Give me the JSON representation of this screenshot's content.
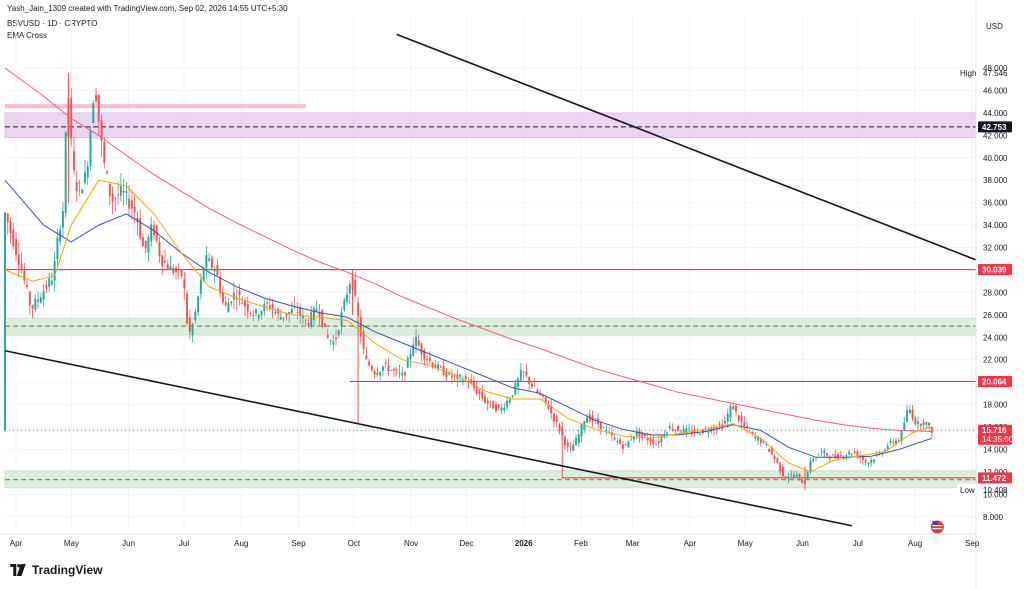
{
  "header": {
    "credit": "Yash_Jain_1309 created with TradingView.com, Sep 02, 2026 14:55 UTC+5:30",
    "symbol": "BSVUSD · 1D · CRYPTO",
    "indicator": "EMA Cross"
  },
  "currency": "USD",
  "brand": {
    "name": "TradingView",
    "logo_icon": "tradingview-logo-icon"
  },
  "chart_data": {
    "type": "line",
    "price_axis": {
      "ticks": [
        "8.000",
        "10.000",
        "12.000",
        "14.000",
        "16.000",
        "18.000",
        "20.000",
        "22.000",
        "24.000",
        "26.000",
        "28.000",
        "30.000",
        "32.000",
        "34.000",
        "36.000",
        "38.000",
        "40.000",
        "42.000",
        "44.000",
        "46.000",
        "48.000"
      ],
      "range": [
        7.0,
        50.5
      ]
    },
    "time_axis": {
      "labels": [
        "Apr",
        "May",
        "Jun",
        "Jul",
        "Aug",
        "Sep",
        "Oct",
        "Nov",
        "Dec",
        "2026",
        "Feb",
        "Mar",
        "Apr",
        "May",
        "Jun",
        "Jul",
        "Aug",
        "Sep"
      ],
      "range_days": [
        -4,
        348
      ]
    },
    "price_labels": [
      {
        "name": "high",
        "prefix": "High",
        "value": "47.546",
        "kind": "plain"
      },
      {
        "name": "level-42753",
        "value": "42.753",
        "kind": "dark"
      },
      {
        "name": "level-30039",
        "value": "30.039",
        "kind": "red"
      },
      {
        "name": "level-20064",
        "value": "20.064",
        "kind": "red"
      },
      {
        "name": "last-price",
        "value": "15.716",
        "sub": "14:35:00",
        "kind": "red"
      },
      {
        "name": "level-11472",
        "value": "11.472",
        "kind": "red"
      },
      {
        "name": "low",
        "prefix": "Low",
        "value": "10.408",
        "kind": "plain"
      }
    ],
    "zones": [
      {
        "name": "resistance-zone",
        "from": 41.8,
        "to": 44.0,
        "color": "#e1bee7"
      },
      {
        "name": "mid-support-zone",
        "from": 24.2,
        "to": 25.7,
        "color": "#c8e6c9"
      },
      {
        "name": "bottom-support-zone",
        "from": 10.6,
        "to": 12.1,
        "color": "#c8e6c9"
      }
    ],
    "horizontal_lines": [
      {
        "name": "level-42753",
        "value": 42.753,
        "style": "dashed",
        "color": "#131722"
      },
      {
        "name": "level-30039",
        "value": 30.039,
        "style": "solid",
        "color": "#f23645"
      },
      {
        "name": "level-20064",
        "value": 20.064,
        "style": "solid",
        "color": "#f23645"
      },
      {
        "name": "level-11472",
        "value": 11.472,
        "style": "solid",
        "color": "#f23645"
      },
      {
        "name": "mid-zone-dash",
        "value": 25.0,
        "style": "dashed",
        "color": "#5d7a60"
      },
      {
        "name": "bottom-zone-dash",
        "value": 11.3,
        "style": "dashed",
        "color": "#5d7a60"
      },
      {
        "name": "last-price-line",
        "value": 15.716,
        "style": "dotted",
        "color": "#26a69a"
      }
    ],
    "pink_highlight": {
      "value": 44.6,
      "from_day": -4,
      "to_day": 105
    },
    "trendlines": [
      {
        "name": "upper-trendline",
        "from": {
          "day": 138,
          "price": 51.0
        },
        "to": {
          "day": 348,
          "price": 30.9
        }
      },
      {
        "name": "lower-trendline",
        "from": {
          "day": -4,
          "price": 22.8
        },
        "to": {
          "day": 303,
          "price": 7.2
        }
      }
    ],
    "ema_fast_color": "#f7a600",
    "ema_mid_color": "#3f51b5",
    "ema_slow_color": "#ef5f78",
    "up_color": "#26a69a",
    "down_color": "#ef5350",
    "price_path": [
      [
        -4,
        35.5
      ],
      [
        2,
        30.5
      ],
      [
        6,
        26.5
      ],
      [
        10,
        28.0
      ],
      [
        14,
        29.5
      ],
      [
        16,
        33.5
      ],
      [
        18,
        36.0
      ],
      [
        19,
        47.5
      ],
      [
        21,
        39.0
      ],
      [
        23,
        37.0
      ],
      [
        26,
        38.5
      ],
      [
        29,
        46.8
      ],
      [
        32,
        40.0
      ],
      [
        35,
        36.2
      ],
      [
        39,
        37.0
      ],
      [
        44,
        35.0
      ],
      [
        47,
        31.5
      ],
      [
        50,
        34.0
      ],
      [
        53,
        31.0
      ],
      [
        57,
        30.0
      ],
      [
        61,
        29.5
      ],
      [
        63,
        24.0
      ],
      [
        65,
        25.5
      ],
      [
        69,
        31.0
      ],
      [
        73,
        30.0
      ],
      [
        76,
        26.5
      ],
      [
        80,
        28.0
      ],
      [
        83,
        27.0
      ],
      [
        87,
        26.0
      ],
      [
        92,
        27.0
      ],
      [
        96,
        25.8
      ],
      [
        102,
        26.5
      ],
      [
        106,
        25.2
      ],
      [
        110,
        26.8
      ],
      [
        113,
        24.0
      ],
      [
        116,
        23.5
      ],
      [
        120,
        27.5
      ],
      [
        122,
        29.5
      ],
      [
        124,
        26.5
      ],
      [
        127,
        22.0
      ],
      [
        131,
        20.8
      ],
      [
        134,
        21.5
      ],
      [
        137,
        21.0
      ],
      [
        141,
        20.5
      ],
      [
        145,
        24.0
      ],
      [
        148,
        22.5
      ],
      [
        152,
        21.5
      ],
      [
        158,
        20.5
      ],
      [
        164,
        20.2
      ],
      [
        171,
        18.2
      ],
      [
        176,
        17.5
      ],
      [
        180,
        18.8
      ],
      [
        184,
        21.0
      ],
      [
        188,
        19.5
      ],
      [
        193,
        18.0
      ],
      [
        198,
        15.5
      ],
      [
        201,
        13.8
      ],
      [
        204,
        15.0
      ],
      [
        207,
        17.0
      ],
      [
        212,
        16.2
      ],
      [
        217,
        15.0
      ],
      [
        221,
        14.2
      ],
      [
        225,
        15.5
      ],
      [
        229,
        15.0
      ],
      [
        233,
        14.5
      ],
      [
        237,
        16.0
      ],
      [
        242,
        15.7
      ],
      [
        247,
        15.5
      ],
      [
        252,
        15.8
      ],
      [
        257,
        16.2
      ],
      [
        260,
        18.0
      ],
      [
        263,
        16.5
      ],
      [
        267,
        15.3
      ],
      [
        272,
        14.5
      ],
      [
        276,
        13.0
      ],
      [
        279,
        11.5
      ],
      [
        283,
        11.8
      ],
      [
        286,
        11.0
      ],
      [
        289,
        13.2
      ],
      [
        293,
        13.8
      ],
      [
        296,
        13.3
      ],
      [
        300,
        13.5
      ],
      [
        304,
        13.8
      ],
      [
        309,
        12.8
      ],
      [
        313,
        13.5
      ],
      [
        317,
        14.5
      ],
      [
        321,
        15.0
      ],
      [
        324,
        17.8
      ],
      [
        327,
        16.2
      ],
      [
        330,
        16.5
      ],
      [
        332,
        15.7
      ]
    ],
    "wick_spikes": [
      {
        "day": 19,
        "high": 47.546,
        "low": 36.0
      },
      {
        "day": 122,
        "high": 30.0,
        "low": 26.0
      },
      {
        "day": 124,
        "high": 27.0,
        "low": 16.2
      },
      {
        "day": 198,
        "high": 16.5,
        "low": 11.4
      },
      {
        "day": 286,
        "high": 12.5,
        "low": 10.408
      }
    ],
    "ema_fast": [
      [
        -4,
        30.0
      ],
      [
        6,
        29.0
      ],
      [
        14,
        29.5
      ],
      [
        20,
        34.0
      ],
      [
        30,
        38.0
      ],
      [
        40,
        37.5
      ],
      [
        50,
        35.0
      ],
      [
        60,
        31.5
      ],
      [
        70,
        28.5
      ],
      [
        80,
        27.5
      ],
      [
        90,
        26.7
      ],
      [
        100,
        26.0
      ],
      [
        110,
        25.8
      ],
      [
        120,
        25.5
      ],
      [
        130,
        23.5
      ],
      [
        140,
        22.0
      ],
      [
        150,
        21.5
      ],
      [
        160,
        20.5
      ],
      [
        170,
        19.2
      ],
      [
        180,
        18.5
      ],
      [
        190,
        18.5
      ],
      [
        200,
        16.8
      ],
      [
        210,
        15.8
      ],
      [
        220,
        15.2
      ],
      [
        230,
        15.0
      ],
      [
        240,
        15.4
      ],
      [
        250,
        15.8
      ],
      [
        260,
        16.3
      ],
      [
        270,
        15.0
      ],
      [
        280,
        12.8
      ],
      [
        288,
        12.0
      ],
      [
        296,
        13.0
      ],
      [
        305,
        13.4
      ],
      [
        315,
        13.8
      ],
      [
        325,
        15.5
      ],
      [
        332,
        16.0
      ]
    ],
    "ema_mid": [
      [
        -4,
        38.0
      ],
      [
        10,
        34.0
      ],
      [
        20,
        32.5
      ],
      [
        30,
        34.0
      ],
      [
        40,
        35.0
      ],
      [
        50,
        33.5
      ],
      [
        60,
        31.5
      ],
      [
        70,
        29.8
      ],
      [
        80,
        28.5
      ],
      [
        90,
        27.5
      ],
      [
        100,
        26.8
      ],
      [
        110,
        26.2
      ],
      [
        120,
        25.8
      ],
      [
        130,
        24.5
      ],
      [
        140,
        23.5
      ],
      [
        150,
        22.5
      ],
      [
        160,
        21.5
      ],
      [
        170,
        20.5
      ],
      [
        180,
        19.5
      ],
      [
        190,
        19.0
      ],
      [
        200,
        17.8
      ],
      [
        210,
        16.6
      ],
      [
        220,
        15.8
      ],
      [
        230,
        15.3
      ],
      [
        240,
        15.3
      ],
      [
        250,
        15.6
      ],
      [
        260,
        16.2
      ],
      [
        270,
        15.7
      ],
      [
        280,
        14.2
      ],
      [
        290,
        13.3
      ],
      [
        300,
        13.3
      ],
      [
        310,
        13.4
      ],
      [
        320,
        14.0
      ],
      [
        332,
        15.0
      ]
    ],
    "ema_slow": [
      [
        -4,
        48.0
      ],
      [
        10,
        45.5
      ],
      [
        20,
        43.5
      ],
      [
        30,
        42.0
      ],
      [
        40,
        40.2
      ],
      [
        50,
        38.5
      ],
      [
        60,
        37.0
      ],
      [
        70,
        35.5
      ],
      [
        80,
        34.2
      ],
      [
        90,
        33.0
      ],
      [
        100,
        31.8
      ],
      [
        110,
        30.7
      ],
      [
        120,
        29.8
      ],
      [
        130,
        28.8
      ],
      [
        140,
        27.6
      ],
      [
        150,
        26.6
      ],
      [
        160,
        25.6
      ],
      [
        170,
        24.7
      ],
      [
        180,
        23.8
      ],
      [
        190,
        23.0
      ],
      [
        200,
        22.1
      ],
      [
        210,
        21.2
      ],
      [
        220,
        20.5
      ],
      [
        230,
        19.8
      ],
      [
        240,
        19.1
      ],
      [
        250,
        18.6
      ],
      [
        260,
        18.1
      ],
      [
        270,
        17.6
      ],
      [
        280,
        17.1
      ],
      [
        290,
        16.6
      ],
      [
        300,
        16.2
      ],
      [
        310,
        15.9
      ],
      [
        320,
        15.7
      ],
      [
        332,
        15.6
      ]
    ]
  }
}
